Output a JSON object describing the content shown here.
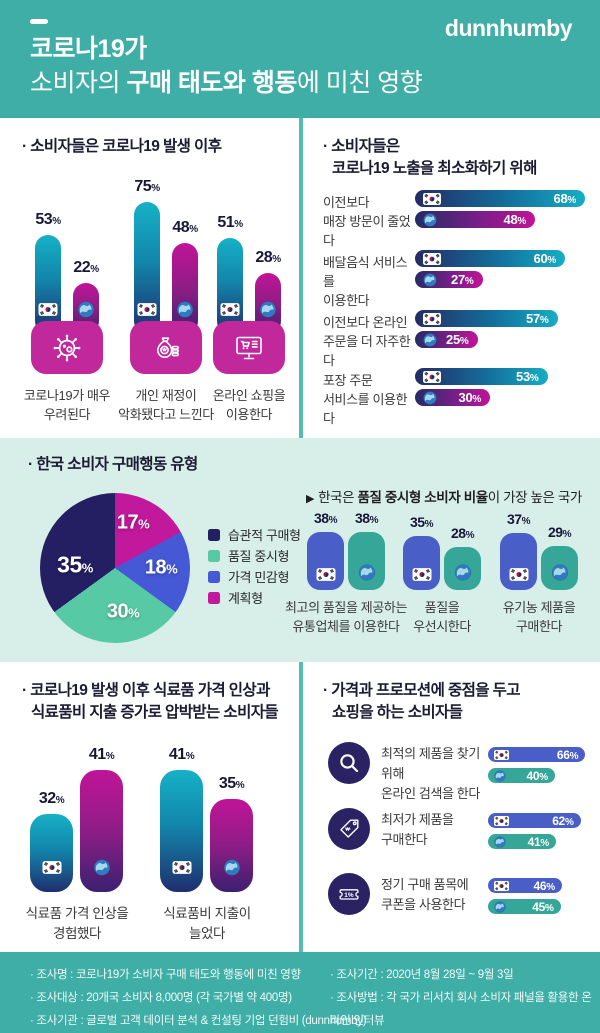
{
  "misc": {
    "percent": "%"
  },
  "colors": {
    "teal_background": "#3FAEA6",
    "mint_band": "#D8EEE9",
    "divider": "#55BCB2",
    "card": "#FFFFFF",
    "bar_teal_top": "#16B1C6",
    "bar_navy_bottom": "#1F2E6E",
    "bar_magenta_top": "#C01497",
    "bar_purple_bottom": "#3B2070",
    "korea_blue": "#4A5EC8",
    "global_green": "#35A698",
    "icon_box_magenta": "#C0289C",
    "circle_navy": "#2B2264",
    "pie_navy": "#241E63",
    "pie_green": "#58C9A5",
    "pie_blue": "#4558D6",
    "pie_magenta": "#C2189B"
  },
  "header": {
    "logo": "dunnhumby",
    "title_line1": "코로나19가",
    "title_line2_pre": "소비자의 ",
    "title_line2_bold": "구매 태도와 행동",
    "title_line2_post": "에 미친 영향"
  },
  "after_covid": {
    "title": "· 소비자들은 코로나19 발생 이후",
    "groups": [
      {
        "kr": 53,
        "gl": 22,
        "icon": "virus-icon",
        "label1": "코로나19가 매우",
        "label2": "우려된다"
      },
      {
        "kr": 75,
        "gl": 48,
        "icon": "money-bag-icon",
        "label1": "개인 재정이",
        "label2": "악화됐다고 느낀다"
      },
      {
        "kr": 51,
        "gl": 28,
        "icon": "online-shopping-icon",
        "label1": "온라인 쇼핑을",
        "label2": "이용한다"
      }
    ]
  },
  "minimize": {
    "title_line1": "· 소비자들은",
    "title_line2": "코로나19 노출을 최소화하기 위해",
    "rows": [
      {
        "label1": "이전보다",
        "label2": "매장 방문이 줄었다",
        "kr": 68,
        "gl": 48
      },
      {
        "label1": "배달음식 서비스를",
        "label2": "이용한다",
        "kr": 60,
        "gl": 27
      },
      {
        "label1": "이전보다 온라인",
        "label2": "주문을 더 자주한다",
        "kr": 57,
        "gl": 25
      },
      {
        "label1": "포장 주문",
        "label2": "서비스를 이용한다",
        "kr": 53,
        "gl": 30
      }
    ]
  },
  "behavior": {
    "title": "· 한국 소비자 구매행동 유형",
    "pie": {
      "slices": [
        {
          "label": "계획형",
          "value": 17,
          "color": "#C2189B"
        },
        {
          "label": "가격 민감형",
          "value": 18,
          "color": "#4558D6"
        },
        {
          "label": "품질 중시형",
          "value": 30,
          "color": "#58C9A5"
        },
        {
          "label": "습관적 구매형",
          "value": 35,
          "color": "#241E63"
        }
      ]
    },
    "legend": [
      {
        "label": "습관적 구매형",
        "color": "#241E63"
      },
      {
        "label": "품질 중시형",
        "color": "#58C9A5"
      },
      {
        "label": "가격 민감형",
        "color": "#4558D6"
      },
      {
        "label": "계획형",
        "color": "#C2189B"
      }
    ],
    "subtitle_arrow": "▶",
    "subtitle_pre": "한국은 ",
    "subtitle_bold": "품질 중시형 소비자 비율",
    "subtitle_post": "이 가장 높은 국가",
    "pairs": [
      {
        "kr": 38,
        "gl": 38,
        "label1": "최고의 품질을 제공하는",
        "label2": "유통업체를 이용한다"
      },
      {
        "kr": 35,
        "gl": 28,
        "label1": "품질을",
        "label2": "우선시한다"
      },
      {
        "kr": 37,
        "gl": 29,
        "label1": "유기농 제품을",
        "label2": "구매한다"
      }
    ]
  },
  "grocery": {
    "title_line1": "· 코로나19 발생 이후 식료품 가격 인상과",
    "title_line2": "식료품비 지출 증가로 압박받는 소비자들",
    "groups": [
      {
        "kr": 32,
        "gl": 41,
        "label1": "식료품 가격 인상을",
        "label2": "경험했다"
      },
      {
        "kr": 41,
        "gl": 35,
        "label1": "식료품비 지출이",
        "label2": "늘었다"
      }
    ]
  },
  "promo": {
    "title_line1": "· 가격과 프로모션에 중점을 두고",
    "title_line2": "쇼핑을 하는 소비자들",
    "rows": [
      {
        "icon": "search-icon",
        "label1": "최적의 제품을 찾기 위해",
        "label2": "온라인 검색을 한다",
        "kr": 66,
        "gl": 40
      },
      {
        "icon": "price-tag-icon",
        "label1": "최저가 제품을",
        "label2": "구매한다",
        "kr": 62,
        "gl": 41
      },
      {
        "icon": "coupon-icon",
        "label1": "정기 구매 품목에",
        "label2": "쿠폰을 사용한다",
        "kr": 46,
        "gl": 45
      }
    ]
  },
  "footer": {
    "left": [
      "· 조사명 : 코로나19가 소비자 구매 태도와 행동에 미친 영향",
      "· 조사대상 : 20개국 소비자 8,000명 (각 국가별 약 400명)",
      "· 조사기관 : 글로벌 고객 데이터 분석 & 컨설팅 기업 던험비 (dunnhumby)"
    ],
    "right": [
      "· 조사기간 : 2020년 8월 28일 ~ 9월 3일",
      "· 조사방법 : 각 국가 리서치 회사 소비자 패널을 활용한 온라인 인터뷰"
    ]
  },
  "chart_data": [
    {
      "type": "bar",
      "orientation": "vertical",
      "unit": "%",
      "title": "소비자들은 코로나19 발생 이후",
      "categories": [
        "코로나19가 매우 우려된다",
        "개인 재정이 악화됐다고 느낀다",
        "온라인 쇼핑을 이용한다"
      ],
      "series": [
        {
          "name": "한국",
          "values": [
            53,
            75,
            51
          ]
        },
        {
          "name": "글로벌",
          "values": [
            22,
            48,
            28
          ]
        }
      ]
    },
    {
      "type": "bar",
      "orientation": "horizontal",
      "unit": "%",
      "title": "소비자들은 코로나19 노출을 최소화하기 위해",
      "categories": [
        "이전보다 매장 방문이 줄었다",
        "배달음식 서비스를 이용한다",
        "이전보다 온라인 주문을 더 자주한다",
        "포장 주문 서비스를 이용한다"
      ],
      "series": [
        {
          "name": "한국",
          "values": [
            68,
            60,
            57,
            53
          ]
        },
        {
          "name": "글로벌",
          "values": [
            48,
            27,
            25,
            30
          ]
        }
      ]
    },
    {
      "type": "pie",
      "unit": "%",
      "title": "한국 소비자 구매행동 유형",
      "labels": [
        "습관적 구매형",
        "품질 중시형",
        "가격 민감형",
        "계획형"
      ],
      "values": [
        35,
        30,
        18,
        17
      ]
    },
    {
      "type": "bar",
      "orientation": "vertical",
      "unit": "%",
      "title": "한국은 품질 중시형 소비자 비율이 가장 높은 국가",
      "categories": [
        "최고의 품질을 제공하는 유통업체를 이용한다",
        "품질을 우선시한다",
        "유기농 제품을 구매한다"
      ],
      "series": [
        {
          "name": "한국",
          "values": [
            38,
            35,
            37
          ]
        },
        {
          "name": "글로벌",
          "values": [
            38,
            28,
            29
          ]
        }
      ]
    },
    {
      "type": "bar",
      "orientation": "vertical",
      "unit": "%",
      "title": "코로나19 발생 이후 식료품 가격 인상과 식료품비 지출 증가로 압박받는 소비자들",
      "categories": [
        "식료품 가격 인상을 경험했다",
        "식료품비 지출이 늘었다"
      ],
      "series": [
        {
          "name": "한국",
          "values": [
            32,
            41
          ]
        },
        {
          "name": "글로벌",
          "values": [
            41,
            35
          ]
        }
      ]
    },
    {
      "type": "bar",
      "orientation": "horizontal",
      "unit": "%",
      "title": "가격과 프로모션에 중점을 두고 쇼핑을 하는 소비자들",
      "categories": [
        "최적의 제품을 찾기 위해 온라인 검색을 한다",
        "최저가 제품을 구매한다",
        "정기 구매 품목에 쿠폰을 사용한다"
      ],
      "series": [
        {
          "name": "한국",
          "values": [
            66,
            62,
            46
          ]
        },
        {
          "name": "글로벌",
          "values": [
            40,
            41,
            45
          ]
        }
      ]
    }
  ]
}
